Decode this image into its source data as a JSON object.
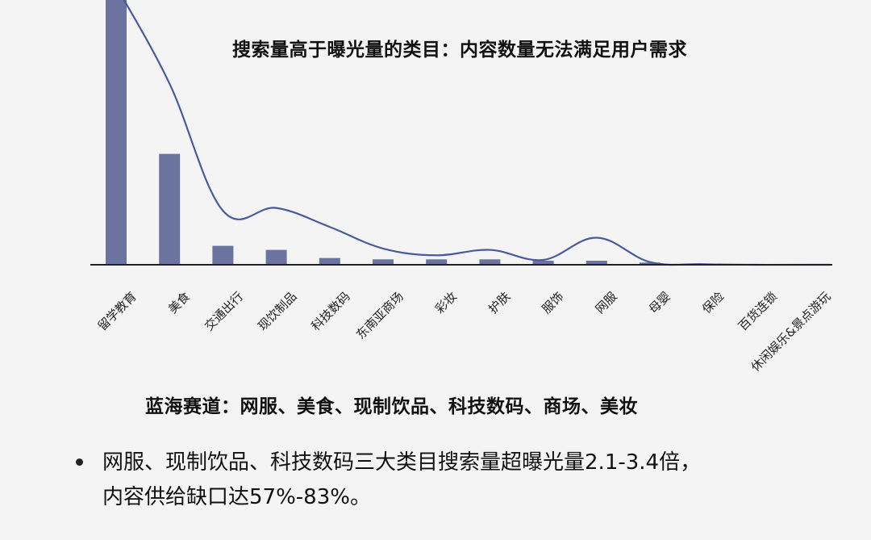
{
  "chart_data": {
    "type": "bar",
    "title": "搜索量高于曝光量的类目：内容数量无法满足用户需求",
    "categories": [
      "留学教育",
      "美食",
      "交通出行",
      "现饮制品",
      "科技数码",
      "东南亚商场",
      "彩妆",
      "护肤",
      "服饰",
      "网服",
      "母婴",
      "保险",
      "百货连锁",
      "休闲娱乐&景点游玩"
    ],
    "series": [
      {
        "type": "bar",
        "values": [
          100,
          41,
          7,
          5.5,
          2.5,
          2,
          2,
          2,
          1.5,
          1.5,
          0.8,
          0,
          0,
          0
        ]
      },
      {
        "type": "line",
        "values": [
          103,
          67,
          20,
          21,
          14,
          6,
          3.5,
          5.5,
          1.8,
          10,
          1,
          0.2,
          0,
          0
        ]
      }
    ],
    "ylim": [
      0,
      100
    ],
    "grid": false,
    "colors": {
      "bar": "#6b73a0",
      "line": "#4a5a9e",
      "axis": "#222222"
    }
  },
  "blue_ocean": "蓝海赛道：网服、美食、现制饮品、科技数码、商场、美妆",
  "bullet": {
    "line1_dark": "网服、现制饮品、科技数码",
    "line1_rest": "三大类目搜索量超曝光量2.1-3.4倍，",
    "line2": "内容供给缺口达57%-83%。"
  }
}
